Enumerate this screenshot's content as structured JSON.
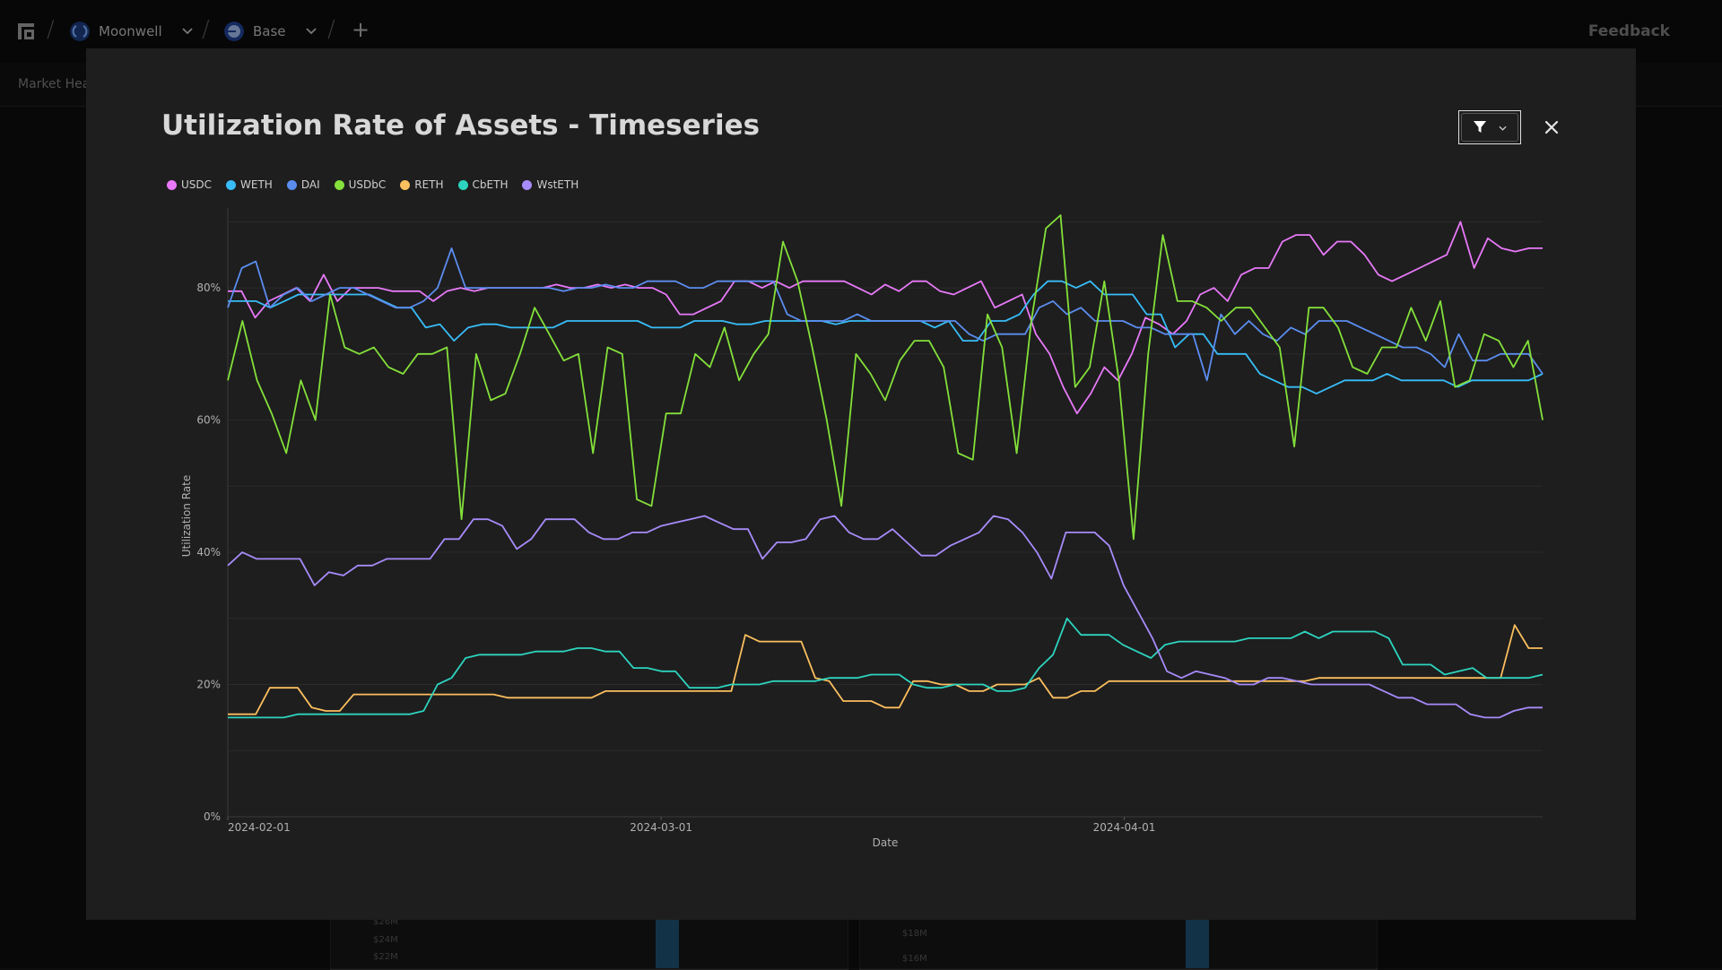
{
  "topbar": {
    "breadcrumbs": [
      {
        "label": "Moonwell",
        "icon": "moonwell-logo-icon"
      },
      {
        "label": "Base",
        "icon": "base-chain-icon"
      }
    ],
    "feedback_label": "Feedback"
  },
  "subnav": {
    "tab_label": "Market Hea"
  },
  "background_cards": [
    {
      "ticks": [
        "$26M",
        "$24M",
        "$22M"
      ]
    },
    {
      "ticks": [
        "$18M",
        "$16M"
      ]
    }
  ],
  "modal": {
    "title": "Utilization Rate of Assets - Timeseries",
    "filter_icon": "filter-icon",
    "close_icon": "close-icon"
  },
  "colors": {
    "USDC": "#e879f9",
    "WETH": "#38bdf8",
    "DAI": "#5b8def",
    "USDbC": "#84e03a",
    "RETH": "#fbbf5e",
    "CbETH": "#2dd4bf",
    "WstETH": "#a78bfa"
  },
  "chart_data": {
    "type": "line",
    "title": "Utilization Rate of Assets - Timeseries",
    "xlabel": "Date",
    "ylabel": "Utilization Rate",
    "x_start": "2024-02-01",
    "x_end": "2024-04-29",
    "x_ticks": [
      "2024-02-01",
      "2024-03-01",
      "2024-04-01"
    ],
    "y_ticks": [
      "0%",
      "20%",
      "40%",
      "60%",
      "80%"
    ],
    "ylim": [
      0,
      91
    ],
    "grid": true,
    "legend": "top-left",
    "series": [
      {
        "name": "USDC",
        "values": [
          79.5,
          79.5,
          75.5,
          78,
          79,
          80,
          78,
          82,
          78,
          80,
          80,
          80,
          79.5,
          79.5,
          79.5,
          78,
          79.5,
          80,
          79.5,
          80,
          80,
          80,
          80,
          80,
          80.5,
          80,
          80,
          80.5,
          80,
          80.5,
          80,
          80,
          79,
          76,
          76,
          77,
          78,
          81,
          81,
          80,
          81,
          80,
          81,
          81,
          81,
          81,
          80,
          79,
          80.5,
          79.5,
          81,
          81,
          79.5,
          79,
          80,
          81,
          77,
          78,
          79,
          73,
          70,
          65,
          61,
          64,
          68,
          66,
          70,
          75.5,
          74.5,
          73,
          75,
          79,
          80,
          78,
          82,
          83,
          83,
          87,
          88,
          88,
          85,
          87,
          87,
          85,
          82,
          81,
          82,
          83,
          84,
          85,
          90,
          83,
          87.5,
          86,
          85.5,
          86,
          86
        ]
      },
      {
        "name": "WETH",
        "values": [
          78,
          78,
          78,
          77,
          78,
          79,
          79,
          79,
          79,
          79,
          79,
          78,
          77,
          77,
          74,
          74.5,
          72,
          74,
          74.5,
          74.5,
          74,
          74,
          74,
          74,
          75,
          75,
          75,
          75,
          75,
          75,
          74,
          74,
          74,
          75,
          75,
          75,
          74.5,
          74.5,
          75,
          75,
          75,
          75,
          75,
          74.5,
          75,
          75,
          75,
          75,
          75,
          75,
          74,
          75,
          72,
          72,
          75,
          75,
          76,
          79,
          81,
          81,
          80,
          81,
          79,
          79,
          79,
          76,
          76,
          71,
          73,
          73,
          70,
          70,
          70,
          67,
          66,
          65,
          65,
          64,
          65,
          66,
          66,
          66,
          67,
          66,
          66,
          66,
          66,
          65,
          66,
          66,
          66,
          66,
          66,
          67
        ]
      },
      {
        "name": "DAI",
        "values": [
          77,
          83,
          84,
          77,
          79,
          80,
          78,
          79,
          80,
          80,
          79,
          78,
          77,
          77,
          78,
          80,
          86,
          80,
          80,
          80,
          80,
          80,
          80,
          80,
          79.5,
          80,
          80,
          80.5,
          80,
          80,
          81,
          81,
          81,
          80,
          80,
          81,
          81,
          81,
          81,
          81,
          76,
          75,
          75,
          75,
          75,
          76,
          75,
          75,
          75,
          75,
          75,
          75,
          75,
          73,
          72,
          73,
          73,
          73,
          77,
          78,
          76,
          77,
          75,
          75,
          75,
          74,
          74,
          73,
          73,
          73,
          66,
          76,
          73,
          75,
          73,
          72,
          74,
          73,
          75,
          75,
          75,
          74,
          73,
          72,
          71,
          71,
          70,
          68,
          73,
          69,
          69,
          70,
          70,
          70,
          67
        ]
      },
      {
        "name": "USDbC",
        "values": [
          66,
          75,
          66,
          61,
          55,
          66,
          60,
          79,
          71,
          70,
          71,
          68,
          67,
          70,
          70,
          71,
          45,
          70,
          63,
          64,
          70,
          77,
          73,
          69,
          70,
          55,
          71,
          70,
          48,
          47,
          61,
          61,
          70,
          68,
          74,
          66,
          70,
          73,
          87,
          81,
          71,
          60,
          47,
          70,
          67,
          63,
          69,
          72,
          72,
          68,
          55,
          54,
          76,
          71,
          55,
          75,
          89,
          91,
          65,
          68,
          81,
          66,
          42,
          70,
          88,
          78,
          78,
          77,
          75,
          77,
          77,
          74,
          71,
          56,
          77,
          77,
          74,
          68,
          67,
          71,
          71,
          77,
          72,
          78,
          65,
          66,
          73,
          72,
          68,
          72,
          60
        ]
      },
      {
        "name": "RETH",
        "values": [
          15.5,
          15.5,
          15.5,
          19.5,
          19.5,
          19.5,
          16.5,
          16,
          16,
          18.5,
          18.5,
          18.5,
          18.5,
          18.5,
          18.5,
          18.5,
          18.5,
          18.5,
          18.5,
          18.5,
          18,
          18,
          18,
          18,
          18,
          18,
          18,
          19,
          19,
          19,
          19,
          19,
          19,
          19,
          19,
          19,
          19,
          27.5,
          26.5,
          26.5,
          26.5,
          26.5,
          21,
          20.5,
          17.5,
          17.5,
          17.5,
          16.5,
          16.5,
          20.5,
          20.5,
          20,
          20,
          19,
          19,
          20,
          20,
          20,
          21,
          18,
          18,
          19,
          19,
          20.5,
          20.5,
          20.5,
          20.5,
          20.5,
          20.5,
          20.5,
          20.5,
          20.5,
          20.5,
          20.5,
          20.5,
          20.5,
          20.5,
          20.5,
          21,
          21,
          21,
          21,
          21,
          21,
          21,
          21,
          21,
          21,
          21,
          21,
          21,
          21,
          29,
          25.5,
          25.5
        ]
      },
      {
        "name": "CbETH",
        "values": [
          15,
          15,
          15,
          15,
          15,
          15.5,
          15.5,
          15.5,
          15.5,
          15.5,
          15.5,
          15.5,
          15.5,
          15.5,
          16,
          20,
          21,
          24,
          24.5,
          24.5,
          24.5,
          24.5,
          25,
          25,
          25,
          25.5,
          25.5,
          25,
          25,
          22.5,
          22.5,
          22,
          22,
          19.5,
          19.5,
          19.5,
          20,
          20,
          20,
          20.5,
          20.5,
          20.5,
          20.5,
          21,
          21,
          21,
          21.5,
          21.5,
          21.5,
          20,
          19.5,
          19.5,
          20,
          20,
          20,
          19,
          19,
          19.5,
          22.5,
          24.5,
          30,
          27.5,
          27.5,
          27.5,
          26,
          25,
          24,
          26,
          26.5,
          26.5,
          26.5,
          26.5,
          26.5,
          27,
          27,
          27,
          27,
          28,
          27,
          28,
          28,
          28,
          28,
          27,
          23,
          23,
          23,
          21.5,
          22,
          22.5,
          21,
          21,
          21,
          21,
          21.5
        ]
      },
      {
        "name": "WstETH",
        "values": [
          38,
          40,
          39,
          39,
          39,
          39,
          35,
          37,
          36.5,
          38,
          38,
          39,
          39,
          39,
          39,
          42,
          42,
          45,
          45,
          44,
          40.5,
          42,
          45,
          45,
          45,
          43,
          42,
          42,
          43,
          43,
          44,
          44.5,
          45,
          45.5,
          44.5,
          43.5,
          43.5,
          39,
          41.5,
          41.5,
          42,
          45,
          45.5,
          43,
          42,
          42,
          43.5,
          41.5,
          39.5,
          39.5,
          41,
          42,
          43,
          45.5,
          45,
          43,
          40,
          36,
          43,
          43,
          43,
          41,
          35,
          31,
          27,
          22,
          21,
          22,
          21.5,
          21,
          20,
          20,
          21,
          21,
          20.5,
          20,
          20,
          20,
          20,
          20,
          19,
          18,
          18,
          17,
          17,
          17,
          15.5,
          15,
          15,
          16,
          16.5,
          16.5
        ]
      }
    ]
  }
}
